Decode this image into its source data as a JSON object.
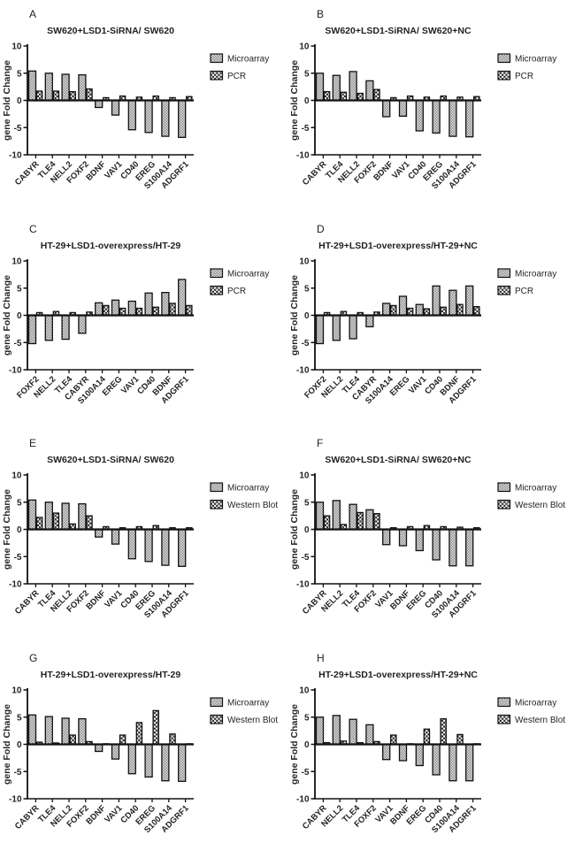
{
  "figure": {
    "background": "#ffffff",
    "text_color": "#231f20",
    "axis_color": "#111111",
    "bar_outline": "#111111",
    "microarray_pattern_dark": "#8f8f8f",
    "microarray_pattern_light": "#dcdcdc",
    "checker_pattern_dark": "#2b2b2b",
    "checker_pattern_light": "#f7f7f7",
    "ylabel": "gene Fold Change"
  },
  "chart_data": [
    {
      "type": "bar",
      "panel": "A",
      "title": "SW620+LSD1-SiRNA/ SW620",
      "ylabel": "gene Fold Change",
      "ylim": [
        -10,
        10
      ],
      "yticks": [
        10,
        5,
        0,
        -5,
        -10
      ],
      "grid": false,
      "legend_position": "right",
      "categories": [
        "CABYR",
        "TLE4",
        "NELL2",
        "FOXF2",
        "BDNF",
        "VAV1",
        "CD40",
        "EREG",
        "S100A14",
        "ADGRF1"
      ],
      "series": [
        {
          "name": "Microarray",
          "pattern": "microarray",
          "values": [
            5.4,
            5.0,
            4.8,
            4.7,
            -1.3,
            -2.7,
            -5.4,
            -5.9,
            -6.6,
            -6.8
          ]
        },
        {
          "name": "PCR",
          "pattern": "checker",
          "values": [
            1.7,
            1.7,
            1.6,
            2.1,
            0.5,
            0.8,
            0.6,
            0.8,
            0.5,
            0.7
          ]
        }
      ]
    },
    {
      "type": "bar",
      "panel": "B",
      "title": "SW620+LSD1-SiRNA/ SW620+NC",
      "ylabel": "gene Fold Change",
      "ylim": [
        -10,
        10
      ],
      "yticks": [
        10,
        5,
        0,
        -5,
        -10
      ],
      "grid": false,
      "legend_position": "right",
      "categories": [
        "CABYR",
        "TLE4",
        "NELL2",
        "FOXF2",
        "BDNF",
        "VAV1",
        "CD40",
        "EREG",
        "S100A14",
        "ADGRF1"
      ],
      "series": [
        {
          "name": "Microarray",
          "pattern": "microarray",
          "values": [
            5.0,
            4.6,
            5.3,
            3.6,
            -3.0,
            -2.9,
            -5.6,
            -6.0,
            -6.6,
            -6.7
          ]
        },
        {
          "name": "PCR",
          "pattern": "checker",
          "values": [
            1.6,
            1.5,
            1.3,
            2.0,
            0.5,
            0.8,
            0.6,
            0.8,
            0.6,
            0.7
          ]
        }
      ]
    },
    {
      "type": "bar",
      "panel": "C",
      "title": "HT-29+LSD1-overexpress/HT-29",
      "ylabel": "gene Fold Change",
      "ylim": [
        -10,
        10
      ],
      "yticks": [
        10,
        5,
        0,
        -5,
        -10
      ],
      "grid": false,
      "legend_position": "right",
      "categories": [
        "FOXF2",
        "NELL2",
        "TLE4",
        "CABYR",
        "S100A14",
        "EREG",
        "VAV1",
        "CD40",
        "BDNF",
        "ADGRF1"
      ],
      "series": [
        {
          "name": "Microarray",
          "pattern": "microarray",
          "values": [
            -5.2,
            -4.6,
            -4.4,
            -3.3,
            2.3,
            2.8,
            2.6,
            4.1,
            4.2,
            6.6
          ]
        },
        {
          "name": "PCR",
          "pattern": "checker",
          "values": [
            0.5,
            0.7,
            0.5,
            0.6,
            1.8,
            1.3,
            1.3,
            1.5,
            2.2,
            1.8
          ]
        }
      ]
    },
    {
      "type": "bar",
      "panel": "D",
      "title": "HT-29+LSD1-overexpress/HT-29+NC",
      "ylabel": "gene Fold Change",
      "ylim": [
        -10,
        10
      ],
      "yticks": [
        10,
        5,
        0,
        -5,
        -10
      ],
      "grid": false,
      "legend_position": "right",
      "categories": [
        "FOXF2",
        "NELL2",
        "TLE4",
        "CABYR",
        "S100A14",
        "EREG",
        "VAV1",
        "CD40",
        "BDNF",
        "ADGRF1"
      ],
      "series": [
        {
          "name": "Microarray",
          "pattern": "microarray",
          "values": [
            -5.2,
            -4.6,
            -4.3,
            -2.1,
            2.2,
            3.5,
            2.0,
            5.4,
            4.6,
            5.4
          ]
        },
        {
          "name": "PCR",
          "pattern": "checker",
          "values": [
            0.5,
            0.7,
            0.5,
            0.6,
            1.8,
            1.3,
            1.2,
            1.5,
            2.0,
            1.6
          ]
        }
      ]
    },
    {
      "type": "bar",
      "panel": "E",
      "title": "SW620+LSD1-SiRNA/ SW620",
      "ylabel": "gene Fold Change",
      "ylim": [
        -10,
        10
      ],
      "yticks": [
        10,
        5,
        0,
        -5,
        -10
      ],
      "grid": false,
      "legend_position": "right",
      "categories": [
        "CABYR",
        "TLE4",
        "NELL2",
        "FOXF2",
        "BDNF",
        "VAV1",
        "CD40",
        "EREG",
        "S100A14",
        "ADGRF1"
      ],
      "series": [
        {
          "name": "Microarray",
          "pattern": "microarray",
          "values": [
            5.4,
            5.0,
            4.8,
            4.7,
            -1.4,
            -2.7,
            -5.4,
            -5.9,
            -6.6,
            -6.8
          ]
        },
        {
          "name": "Western Blot",
          "pattern": "checker",
          "values": [
            2.2,
            3.0,
            1.0,
            2.5,
            0.5,
            0.3,
            0.5,
            0.7,
            0.3,
            0.3
          ]
        }
      ]
    },
    {
      "type": "bar",
      "panel": "F",
      "title": "SW620+LSD1-SiRNA/ SW620+NC",
      "ylabel": "gene Fold Change",
      "ylim": [
        -10,
        10
      ],
      "yticks": [
        10,
        5,
        0,
        -5,
        -10
      ],
      "grid": false,
      "legend_position": "right",
      "categories": [
        "CABYR",
        "NELL2",
        "TLE4",
        "FOXF2",
        "VAV1",
        "BDNF",
        "EREG",
        "CD40",
        "S100A14",
        "ADGRF1"
      ],
      "series": [
        {
          "name": "Microarray",
          "pattern": "microarray",
          "values": [
            5.0,
            5.3,
            4.6,
            3.6,
            -2.8,
            -3.0,
            -3.9,
            -5.6,
            -6.7,
            -6.7
          ]
        },
        {
          "name": "Western Blot",
          "pattern": "checker",
          "values": [
            2.5,
            0.9,
            3.1,
            2.9,
            0.3,
            0.5,
            0.7,
            0.5,
            0.4,
            0.3
          ]
        }
      ]
    },
    {
      "type": "bar",
      "panel": "G",
      "title": "HT-29+LSD1-overexpress/HT-29",
      "ylabel": "gene Fold Change",
      "ylim": [
        -10,
        10
      ],
      "yticks": [
        10,
        5,
        0,
        -5,
        -10
      ],
      "grid": false,
      "legend_position": "right",
      "categories": [
        "CABYR",
        "TLE4",
        "NELL2",
        "FOXF2",
        "BDNF",
        "VAV1",
        "CD40",
        "EREG",
        "S100A14",
        "ADGRF1"
      ],
      "series": [
        {
          "name": "Microarray",
          "pattern": "microarray",
          "values": [
            5.4,
            5.1,
            4.8,
            4.7,
            -1.3,
            -2.7,
            -5.4,
            -6.0,
            -6.7,
            -6.8
          ]
        },
        {
          "name": "Western Blot",
          "pattern": "checker",
          "values": [
            0.4,
            0.25,
            1.7,
            0.5,
            0.1,
            1.7,
            4.0,
            6.2,
            1.9,
            0.1
          ]
        }
      ]
    },
    {
      "type": "bar",
      "panel": "H",
      "title": "HT-29+LSD1-overexpress/HT-29+NC",
      "ylabel": "gene Fold Change",
      "ylim": [
        -10,
        10
      ],
      "yticks": [
        10,
        5,
        0,
        -5,
        -10
      ],
      "grid": false,
      "legend_position": "right",
      "categories": [
        "CABYR",
        "NELL2",
        "TLE4",
        "FOXF2",
        "VAV1",
        "BDNF",
        "EREG",
        "CD40",
        "S100A14",
        "ADGRF1"
      ],
      "series": [
        {
          "name": "Microarray",
          "pattern": "microarray",
          "values": [
            5.0,
            5.3,
            4.6,
            3.6,
            -2.8,
            -3.0,
            -3.9,
            -5.6,
            -6.7,
            -6.7
          ]
        },
        {
          "name": "Western Blot",
          "pattern": "checker",
          "values": [
            0.3,
            0.6,
            0.3,
            0.5,
            1.7,
            0.1,
            2.8,
            4.7,
            1.8,
            0.1
          ]
        }
      ]
    }
  ]
}
